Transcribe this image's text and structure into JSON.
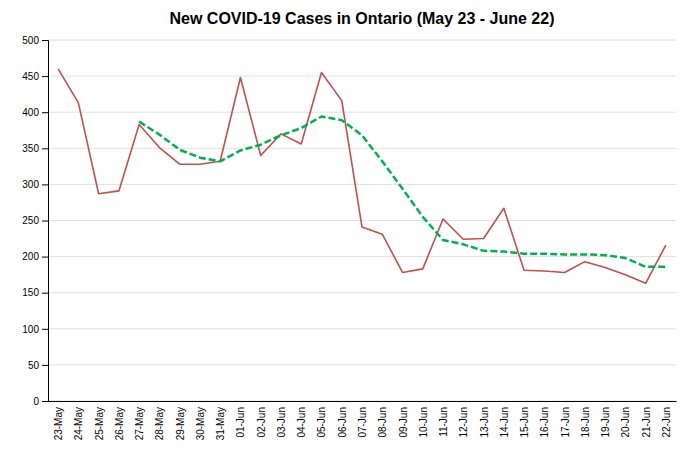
{
  "chart_data": {
    "type": "line",
    "title": "New COVID-19 Cases in Ontario (May 23 - June 22)",
    "categories": [
      "23-May",
      "24-May",
      "25-May",
      "26-May",
      "27-May",
      "28-May",
      "29-May",
      "30-May",
      "31-May",
      "01-Jun",
      "02-Jun",
      "03-Jun",
      "04-Jun",
      "05-Jun",
      "06-Jun",
      "07-Jun",
      "08-Jun",
      "09-Jun",
      "10-Jun",
      "11-Jun",
      "12-Jun",
      "13-Jun",
      "14-Jun",
      "15-Jun",
      "16-Jun",
      "17-Jun",
      "18-Jun",
      "19-Jun",
      "20-Jun",
      "21-Jun",
      "22-Jun"
    ],
    "series": [
      {
        "color": "#c0504d",
        "line_style": "solid",
        "values": [
          460,
          413,
          287,
          291,
          383,
          351,
          328,
          328,
          332,
          448,
          340,
          370,
          356,
          455,
          416,
          241,
          231,
          178,
          183,
          252,
          224,
          225,
          267,
          181,
          180,
          178,
          193,
          185,
          175,
          163,
          216
        ]
      },
      {
        "color": "#00b050",
        "line_style": "dashed",
        "values": [
          null,
          null,
          null,
          null,
          387,
          369,
          348,
          337,
          332,
          347,
          355,
          368,
          378,
          394,
          389,
          368,
          332,
          294,
          255,
          223,
          217,
          208,
          207,
          204,
          204,
          203,
          203,
          202,
          198,
          186,
          186
        ]
      }
    ],
    "ylim": [
      0,
      500
    ],
    "yticks": [
      0,
      50,
      100,
      150,
      200,
      250,
      300,
      350,
      400,
      450,
      500
    ],
    "grid": true
  }
}
